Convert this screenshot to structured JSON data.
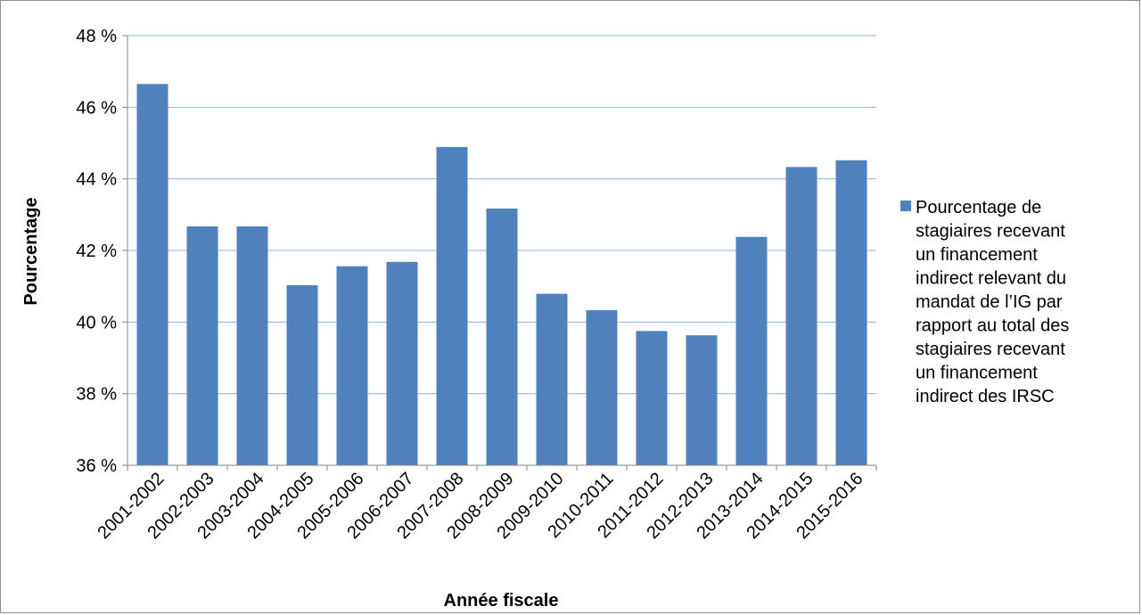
{
  "chart_data": {
    "type": "bar",
    "categories": [
      "2001-2002",
      "2002-2003",
      "2003-2004",
      "2004-2005",
      "2005-2006",
      "2006-2007",
      "2007-2008",
      "2008-2009",
      "2009-2010",
      "2010-2011",
      "2011-2012",
      "2012-2013",
      "2013-2014",
      "2014-2015",
      "2015-2016"
    ],
    "series": [
      {
        "name": "Pourcentage de stagiaires recevant un financement indirect relevant du mandat de l’IG par rapport au total des stagiaires recevant un financement indirect des IRSC",
        "values": [
          46.65,
          42.67,
          42.67,
          41.03,
          41.56,
          41.68,
          44.89,
          43.17,
          40.79,
          40.33,
          39.75,
          39.63,
          42.38,
          44.33,
          44.52
        ],
        "color": "#4f81bd"
      }
    ],
    "legend_lines": [
      "Pourcentage de",
      "stagiaires recevant",
      "un financement",
      "indirect relevant du",
      "mandat de l’IG par",
      "rapport au total des",
      "stagiaires recevant",
      "un financement",
      "indirect des IRSC"
    ],
    "ylim": [
      36,
      48
    ],
    "yticks": [
      36,
      38,
      40,
      42,
      44,
      46,
      48
    ],
    "ytick_labels": [
      "36 %",
      "38 %",
      "40 %",
      "42 %",
      "44 %",
      "46 %",
      "48 %"
    ],
    "xlabel": "Année fiscale",
    "ylabel": "Pourcentage",
    "grid": true,
    "legend_position": "right"
  }
}
